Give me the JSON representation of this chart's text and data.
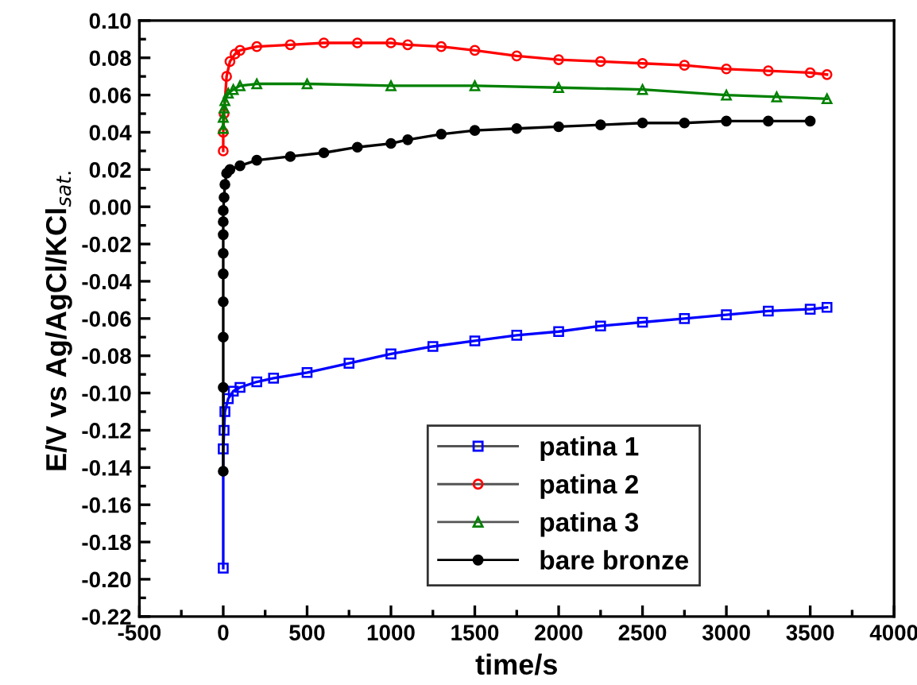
{
  "chart_data": {
    "type": "line",
    "xlabel": "time/s",
    "ylabel": "E/V vs Ag/AgCl/KCl$_{sat.}$",
    "xlim": [
      -500,
      4000
    ],
    "xticks": [
      -500,
      0,
      500,
      1000,
      1500,
      2000,
      2500,
      3000,
      3500,
      4000
    ],
    "ylim": [
      -0.22,
      0.1
    ],
    "yticks": [
      {
        "value": -0.22,
        "label": "-0.22"
      },
      {
        "value": -0.2,
        "label": "-0.20"
      },
      {
        "value": -0.18,
        "label": "-0.18"
      },
      {
        "value": -0.16,
        "label": "-0.16"
      },
      {
        "value": -0.14,
        "label": "-0.14"
      },
      {
        "value": -0.12,
        "label": "-0.12"
      },
      {
        "value": -0.1,
        "label": "-0.10"
      },
      {
        "value": -0.08,
        "label": "-0.08"
      },
      {
        "value": -0.06,
        "label": "-0.06"
      },
      {
        "value": -0.04,
        "label": "-0.04"
      },
      {
        "value": -0.02,
        "label": "-0.02"
      },
      {
        "value": 0.0,
        "label": "0.00"
      },
      {
        "value": 0.02,
        "label": "0.02"
      },
      {
        "value": 0.04,
        "label": "0.04"
      },
      {
        "value": 0.06,
        "label": "0.06"
      },
      {
        "value": 0.08,
        "label": "0.08"
      },
      {
        "value": 0.1,
        "label": "0.10"
      }
    ],
    "grid": false,
    "legend": "bottom right",
    "series": [
      {
        "name": "patina 1",
        "color": "#0000ff",
        "marker": "square",
        "x": [
          0,
          0,
          5,
          10,
          30,
          60,
          100,
          200,
          300,
          500,
          750,
          1000,
          1250,
          1500,
          1750,
          2000,
          2250,
          2500,
          2750,
          3000,
          3250,
          3500,
          3600
        ],
        "values": [
          -0.194,
          -0.13,
          -0.12,
          -0.11,
          -0.103,
          -0.099,
          -0.097,
          -0.094,
          -0.092,
          -0.089,
          -0.084,
          -0.079,
          -0.075,
          -0.072,
          -0.069,
          -0.067,
          -0.064,
          -0.062,
          -0.06,
          -0.058,
          -0.056,
          -0.055,
          -0.054
        ]
      },
      {
        "name": "patina 2",
        "color": "#ff0000",
        "marker": "circle",
        "x": [
          0,
          0,
          5,
          20,
          40,
          70,
          100,
          200,
          400,
          600,
          800,
          1000,
          1100,
          1300,
          1500,
          1750,
          2000,
          2250,
          2500,
          2750,
          3000,
          3250,
          3500,
          3600
        ],
        "values": [
          0.03,
          0.04,
          0.05,
          0.07,
          0.078,
          0.082,
          0.084,
          0.086,
          0.087,
          0.088,
          0.088,
          0.088,
          0.087,
          0.086,
          0.084,
          0.081,
          0.079,
          0.078,
          0.077,
          0.076,
          0.074,
          0.073,
          0.072,
          0.071
        ]
      },
      {
        "name": "patina 3",
        "color": "#008000",
        "marker": "triangle",
        "x": [
          0,
          0,
          5,
          10,
          30,
          60,
          100,
          200,
          500,
          1000,
          1500,
          2000,
          2500,
          3000,
          3300,
          3600
        ],
        "values": [
          0.042,
          0.048,
          0.053,
          0.057,
          0.061,
          0.063,
          0.065,
          0.066,
          0.066,
          0.065,
          0.065,
          0.064,
          0.063,
          0.06,
          0.059,
          0.058
        ]
      },
      {
        "name": "bare bronze",
        "color": "#000000",
        "marker": "filled_circle",
        "x": [
          0,
          0,
          0,
          0,
          0,
          0,
          0,
          0,
          0,
          5,
          10,
          20,
          40,
          100,
          200,
          400,
          600,
          800,
          1000,
          1100,
          1300,
          1500,
          1750,
          2000,
          2250,
          2500,
          2750,
          3000,
          3250,
          3500
        ],
        "values": [
          -0.142,
          -0.097,
          -0.07,
          -0.051,
          -0.036,
          -0.025,
          -0.015,
          -0.008,
          -0.002,
          0.005,
          0.012,
          0.018,
          0.02,
          0.022,
          0.025,
          0.027,
          0.029,
          0.032,
          0.034,
          0.036,
          0.039,
          0.041,
          0.042,
          0.043,
          0.044,
          0.045,
          0.045,
          0.046,
          0.046,
          0.046
        ]
      }
    ]
  }
}
